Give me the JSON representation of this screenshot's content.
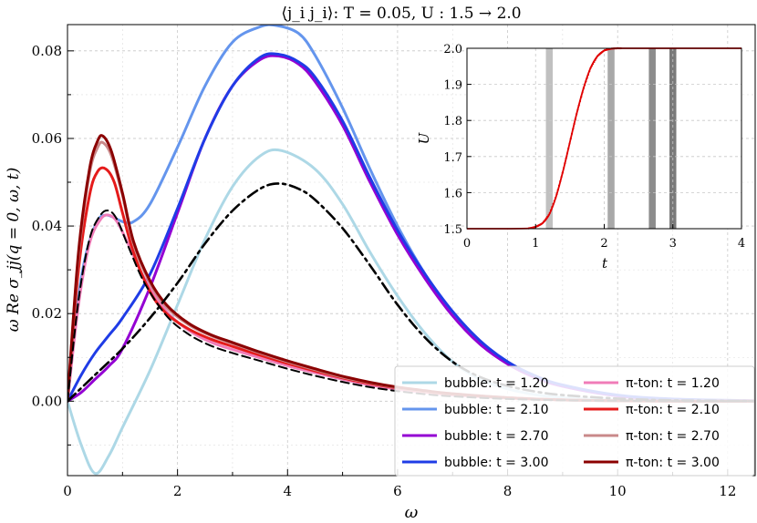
{
  "chart_data": [
    {
      "type": "line",
      "title": "⟨j_i j_i⟩: T = 0.05, U : 1.5 → 2.0",
      "xlabel": "ω",
      "ylabel": "ω Re σ_jj(q = 0, ω, t)",
      "xlim": [
        0,
        12.5
      ],
      "ylim": [
        -0.017,
        0.086
      ],
      "xticks": [
        "0",
        "2",
        "4",
        "6",
        "8",
        "10",
        "12"
      ],
      "yticks": [
        "0.00",
        "0.02",
        "0.04",
        "0.06",
        "0.08"
      ],
      "grid": true,
      "legend_position": "bottom-right",
      "series": [
        {
          "name": "bubble: t = 1.20",
          "color": "#add8e6",
          "style": "solid",
          "x": [
            0,
            0.25,
            0.5,
            0.75,
            1.0,
            1.5,
            2.0,
            2.5,
            3.0,
            3.5,
            3.9,
            4.5,
            5.0,
            5.5,
            6.0,
            6.5,
            7.0,
            7.5,
            8.0,
            8.5,
            9.0,
            10.0,
            11.0,
            12.5
          ],
          "y": [
            0.0,
            -0.01,
            -0.0165,
            -0.0125,
            -0.006,
            0.007,
            0.022,
            0.037,
            0.049,
            0.056,
            0.0572,
            0.053,
            0.045,
            0.034,
            0.024,
            0.0155,
            0.009,
            0.005,
            0.0028,
            0.0015,
            0.0008,
            0.0003,
            0.0001,
            0.0
          ]
        },
        {
          "name": "bubble: t = 2.10",
          "color": "#6495ed",
          "style": "solid",
          "x": [
            0,
            0.25,
            0.5,
            0.7,
            1.0,
            1.2,
            1.5,
            2.0,
            2.5,
            3.0,
            3.5,
            3.8,
            4.2,
            4.5,
            5.0,
            5.5,
            6.0,
            6.5,
            7.0,
            7.5,
            8.0,
            8.5,
            9.0,
            10.0,
            11.0,
            12.5
          ],
          "y": [
            0.0,
            0.028,
            0.04,
            0.0425,
            0.041,
            0.041,
            0.045,
            0.058,
            0.072,
            0.082,
            0.0855,
            0.0858,
            0.084,
            0.079,
            0.067,
            0.053,
            0.04,
            0.029,
            0.02,
            0.0135,
            0.0088,
            0.0055,
            0.0034,
            0.0012,
            0.0004,
            0.0001
          ]
        },
        {
          "name": "bubble: t = 2.70",
          "color": "#9400d3",
          "style": "solid",
          "x": [
            0,
            0.25,
            0.5,
            0.75,
            1.0,
            1.5,
            2.0,
            2.5,
            3.0,
            3.5,
            3.85,
            4.2,
            4.5,
            5.0,
            5.5,
            6.0,
            6.5,
            7.0,
            7.5,
            8.0,
            8.5,
            9.0,
            10.0,
            11.0,
            12.5
          ],
          "y": [
            0.0,
            0.002,
            0.005,
            0.008,
            0.012,
            0.026,
            0.043,
            0.06,
            0.072,
            0.078,
            0.0788,
            0.077,
            0.073,
            0.063,
            0.05,
            0.038,
            0.028,
            0.0195,
            0.013,
            0.0085,
            0.0054,
            0.0034,
            0.0012,
            0.0004,
            0.0001
          ]
        },
        {
          "name": "bubble: t = 3.00",
          "color": "#1f3ce6",
          "style": "solid",
          "x": [
            0,
            0.25,
            0.5,
            0.75,
            1.0,
            1.5,
            2.0,
            2.5,
            3.0,
            3.5,
            3.85,
            4.2,
            4.5,
            5.0,
            5.5,
            6.0,
            6.5,
            7.0,
            7.5,
            8.0,
            8.5,
            9.0,
            10.0,
            11.0,
            12.5
          ],
          "y": [
            0.0,
            0.006,
            0.011,
            0.015,
            0.019,
            0.029,
            0.044,
            0.06,
            0.072,
            0.0785,
            0.0792,
            0.0775,
            0.074,
            0.064,
            0.051,
            0.039,
            0.029,
            0.0205,
            0.0138,
            0.009,
            0.0058,
            0.0037,
            0.0014,
            0.0005,
            0.0001
          ]
        },
        {
          "name": "π-ton: t = 1.20",
          "color": "#f07cb8",
          "style": "solid",
          "x": [
            0,
            0.2,
            0.4,
            0.6,
            0.75,
            0.9,
            1.1,
            1.4,
            1.8,
            2.2,
            2.6,
            3.0,
            3.5,
            4.0,
            4.5,
            5.0,
            5.5,
            6.0,
            6.5,
            7.0,
            8.0,
            9.0,
            10.0,
            11.0,
            12.5
          ],
          "y": [
            0.0,
            0.022,
            0.036,
            0.0415,
            0.0425,
            0.041,
            0.036,
            0.028,
            0.0205,
            0.0162,
            0.0135,
            0.0118,
            0.0099,
            0.0081,
            0.0065,
            0.005,
            0.0037,
            0.0027,
            0.002,
            0.0014,
            0.0007,
            0.0003,
            0.0001,
            0.0,
            0.0
          ]
        },
        {
          "name": "π-ton: t = 2.10",
          "color": "#e51b1b",
          "style": "solid",
          "x": [
            0,
            0.2,
            0.4,
            0.55,
            0.7,
            0.85,
            1.0,
            1.2,
            1.5,
            1.8,
            2.2,
            2.6,
            3.0,
            3.5,
            4.0,
            4.5,
            5.0,
            5.5,
            6.0,
            6.5,
            7.0,
            8.0,
            9.0,
            10.0,
            11.0,
            12.5
          ],
          "y": [
            0.0,
            0.03,
            0.047,
            0.0525,
            0.053,
            0.05,
            0.043,
            0.034,
            0.025,
            0.02,
            0.0165,
            0.0142,
            0.0125,
            0.0105,
            0.0086,
            0.0069,
            0.0053,
            0.004,
            0.003,
            0.0022,
            0.0016,
            0.0008,
            0.0003,
            0.0001,
            0.0,
            0.0
          ]
        },
        {
          "name": "π-ton: t = 2.70",
          "color": "#c9898a",
          "style": "solid",
          "x": [
            0,
            0.2,
            0.4,
            0.55,
            0.65,
            0.8,
            1.0,
            1.2,
            1.5,
            1.8,
            2.2,
            2.6,
            3.0,
            3.5,
            4.0,
            4.5,
            5.0,
            5.5,
            6.0,
            6.5,
            7.0,
            8.0,
            9.0,
            10.0,
            11.0,
            12.5
          ],
          "y": [
            0.0,
            0.033,
            0.052,
            0.058,
            0.059,
            0.056,
            0.047,
            0.036,
            0.027,
            0.0215,
            0.0175,
            0.015,
            0.0132,
            0.011,
            0.009,
            0.0072,
            0.0055,
            0.0042,
            0.0031,
            0.0023,
            0.0017,
            0.0008,
            0.0003,
            0.0001,
            0.0,
            0.0
          ]
        },
        {
          "name": "π-ton: t = 3.00",
          "color": "#8b0000",
          "style": "solid",
          "x": [
            0,
            0.2,
            0.4,
            0.55,
            0.65,
            0.8,
            1.0,
            1.2,
            1.5,
            1.8,
            2.2,
            2.6,
            3.0,
            3.5,
            4.0,
            4.5,
            5.0,
            5.5,
            6.0,
            6.5,
            7.0,
            8.0,
            9.0,
            10.0,
            11.0,
            12.5
          ],
          "y": [
            0.0,
            0.034,
            0.053,
            0.0595,
            0.0605,
            0.057,
            0.0475,
            0.0365,
            0.0275,
            0.022,
            0.0178,
            0.0152,
            0.0134,
            0.0112,
            0.0092,
            0.0074,
            0.0057,
            0.0043,
            0.0032,
            0.0024,
            0.0017,
            0.0008,
            0.0003,
            0.0001,
            0.0,
            0.0
          ]
        },
        {
          "name": "",
          "color": "#000000",
          "style": "dashdot",
          "x": [
            0,
            0.5,
            1.0,
            1.5,
            2.0,
            2.5,
            3.0,
            3.5,
            3.85,
            4.2,
            4.5,
            5.0,
            5.5,
            6.0,
            6.5,
            7.0,
            7.5,
            8.0,
            8.5,
            9.0,
            10.0,
            11.0,
            12.5
          ],
          "y": [
            0.0,
            0.006,
            0.012,
            0.019,
            0.027,
            0.036,
            0.0435,
            0.0485,
            0.0497,
            0.0485,
            0.046,
            0.0395,
            0.031,
            0.022,
            0.0145,
            0.009,
            0.0055,
            0.0035,
            0.0022,
            0.0014,
            0.0006,
            0.0002,
            0.0
          ]
        },
        {
          "name": "",
          "color": "#000000",
          "style": "dashed",
          "x": [
            0,
            0.2,
            0.4,
            0.6,
            0.75,
            0.9,
            1.1,
            1.4,
            1.8,
            2.2,
            2.6,
            3.0,
            3.5,
            4.0,
            4.5,
            5.0,
            5.5,
            6.0,
            6.5,
            7.0,
            8.0,
            9.0,
            10.0,
            11.0,
            12.5
          ],
          "y": [
            0.0,
            0.023,
            0.037,
            0.0425,
            0.0435,
            0.0415,
            0.0355,
            0.027,
            0.0195,
            0.0153,
            0.0127,
            0.011,
            0.0092,
            0.0074,
            0.0058,
            0.0044,
            0.0032,
            0.0023,
            0.0016,
            0.0011,
            0.0005,
            0.0002,
            0.0001,
            0.0,
            0.0
          ]
        }
      ],
      "legend": [
        {
          "label": "bubble: t = 1.20",
          "color": "#add8e6"
        },
        {
          "label": "π-ton: t = 1.20",
          "color": "#f07cb8"
        },
        {
          "label": "bubble: t = 2.10",
          "color": "#6495ed"
        },
        {
          "label": "π-ton: t = 2.10",
          "color": "#e51b1b"
        },
        {
          "label": "bubble: t = 2.70",
          "color": "#9400d3"
        },
        {
          "label": "π-ton: t = 2.70",
          "color": "#c9898a"
        },
        {
          "label": "bubble: t = 3.00",
          "color": "#1f3ce6"
        },
        {
          "label": "π-ton: t = 3.00",
          "color": "#8b0000"
        }
      ]
    },
    {
      "type": "line",
      "title": "",
      "xlabel": "t",
      "ylabel": "U",
      "xlim": [
        0,
        4
      ],
      "ylim": [
        1.5,
        2.0
      ],
      "xticks": [
        "0",
        "1",
        "2",
        "3",
        "4"
      ],
      "yticks": [
        "1.5",
        "1.6",
        "1.7",
        "1.8",
        "1.9",
        "2.0"
      ],
      "grid": true,
      "series": [
        {
          "name": "",
          "color": "#e00000",
          "x": [
            0,
            0.5,
            0.9,
            1.0,
            1.1,
            1.2,
            1.3,
            1.4,
            1.5,
            1.6,
            1.7,
            1.8,
            1.9,
            2.0,
            2.1,
            2.2,
            2.5,
            3.0,
            3.5,
            4.0
          ],
          "y": [
            1.5,
            1.5,
            1.501,
            1.505,
            1.515,
            1.54,
            1.59,
            1.66,
            1.74,
            1.82,
            1.89,
            1.945,
            1.978,
            1.994,
            1.999,
            2.0,
            2.0,
            2.0,
            2.0,
            2.0
          ]
        }
      ],
      "shaded_t": [
        1.2,
        2.1,
        2.7,
        3.0
      ]
    }
  ]
}
